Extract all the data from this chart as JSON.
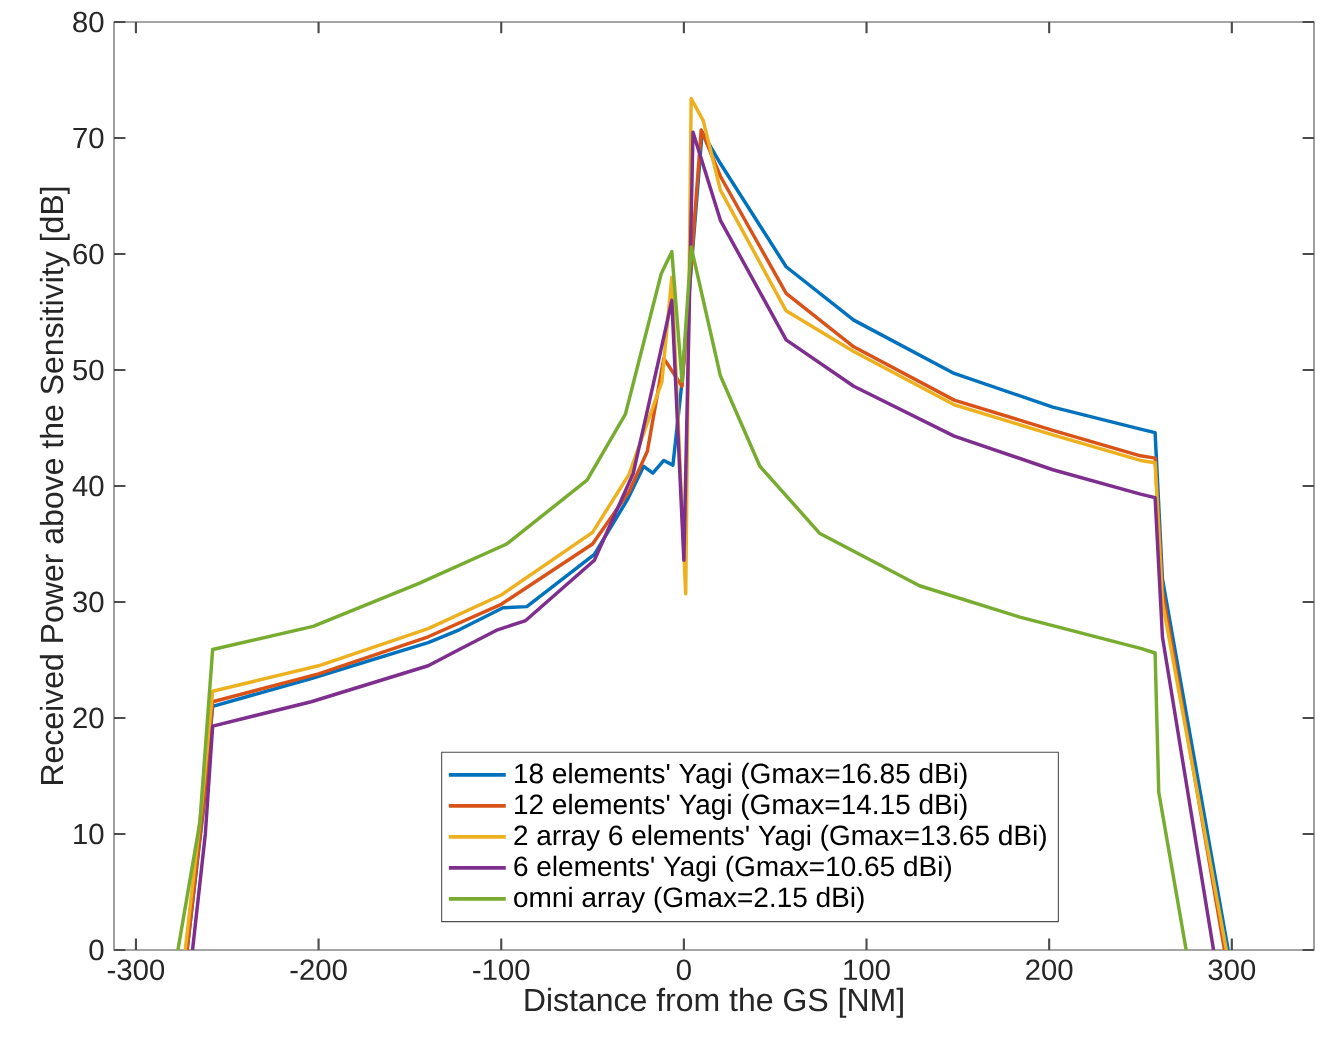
{
  "chart_data": {
    "type": "line",
    "xlabel": "Distance from the GS [NM]",
    "ylabel": "Received Power above the Sensitivity [dB]",
    "xlim": [
      -312,
      345
    ],
    "ylim": [
      0,
      80
    ],
    "xticks": [
      -300,
      -200,
      -100,
      0,
      100,
      200,
      300
    ],
    "yticks": [
      0,
      10,
      20,
      30,
      40,
      50,
      60,
      70,
      80
    ],
    "grid": false,
    "legend": "bottom",
    "marker": "none",
    "line_style": "solid",
    "series": [
      {
        "name": "18 elements' Yagi (Gmax=16.85 dBi)",
        "color": "#0072bd",
        "x": [
          -272,
          -263,
          -258,
          -204,
          -140,
          -123,
          -99,
          -86,
          -49,
          -31,
          -22,
          -17,
          -11,
          -6,
          -1,
          10,
          20,
          56,
          93,
          148,
          202,
          250,
          258,
          262,
          298
        ],
        "values": [
          0,
          12.2,
          21,
          23.4,
          26.5,
          27.6,
          29.5,
          29.6,
          34.1,
          38.8,
          41.7,
          41.1,
          42.2,
          41.8,
          49,
          70.5,
          67.8,
          58.9,
          54.3,
          49.7,
          46.8,
          44.9,
          44.6,
          32,
          0
        ]
      },
      {
        "name": "12 elements' Yagi (Gmax=14.15 dBi)",
        "color": "#d95319",
        "x": [
          -272,
          -263,
          -258,
          -200,
          -140,
          -100,
          -50,
          -30,
          -20,
          -11,
          -1,
          9.5,
          20,
          56,
          93,
          148,
          202,
          250,
          258,
          262,
          296
        ],
        "values": [
          0,
          12.5,
          21.4,
          23.8,
          27,
          29.8,
          35,
          39.5,
          43,
          51,
          48.6,
          70.7,
          66.7,
          56.6,
          52,
          47.4,
          44.8,
          42.6,
          42.4,
          31,
          0
        ]
      },
      {
        "name": "2 array 6 elements' Yagi (Gmax=13.65 dBi)",
        "color": "#edb120",
        "x": [
          -273,
          -264,
          -258,
          -200,
          -140,
          -100,
          -50,
          -30,
          -12,
          -6.6,
          1,
          4,
          10.6,
          20,
          56,
          93,
          148,
          202,
          250,
          258,
          262,
          297
        ],
        "values": [
          0,
          12.5,
          22.3,
          24.5,
          27.7,
          30.6,
          36,
          41,
          49,
          58,
          30.7,
          73.4,
          71.5,
          65.5,
          55.1,
          51.6,
          47,
          44.4,
          42.2,
          42,
          30,
          0
        ]
      },
      {
        "name": "6 elements' Yagi (Gmax=10.65 dBi)",
        "color": "#7e2f8e",
        "x": [
          -269,
          -262,
          -258,
          -204,
          -140,
          -123,
          -102,
          -86.6,
          -49,
          -27.7,
          -13,
          -6.6,
          0,
          5,
          20,
          56,
          93,
          148,
          202,
          250,
          258,
          262,
          290
        ],
        "values": [
          0,
          10,
          19.3,
          21.4,
          24.5,
          25.9,
          27.6,
          28.4,
          33.6,
          41.1,
          51.4,
          56,
          33.6,
          70.5,
          62.9,
          52.6,
          48.6,
          44.3,
          41.4,
          39.3,
          39,
          27,
          0
        ]
      },
      {
        "name": "omni array (Gmax=2.15 dBi)",
        "color": "#77ac30",
        "x": [
          -277,
          -265,
          -258,
          -203,
          -145,
          -97,
          -53,
          -32,
          -12.4,
          -6.6,
          -1,
          4,
          20,
          41.6,
          74.5,
          129,
          184,
          250,
          258,
          260,
          275
        ],
        "values": [
          0,
          11,
          25.9,
          27.9,
          31.6,
          35,
          40.5,
          46.2,
          58.3,
          60.2,
          49,
          60.6,
          49.5,
          41.7,
          35.9,
          31.4,
          28.7,
          26,
          25.6,
          13.6,
          0
        ]
      }
    ]
  }
}
